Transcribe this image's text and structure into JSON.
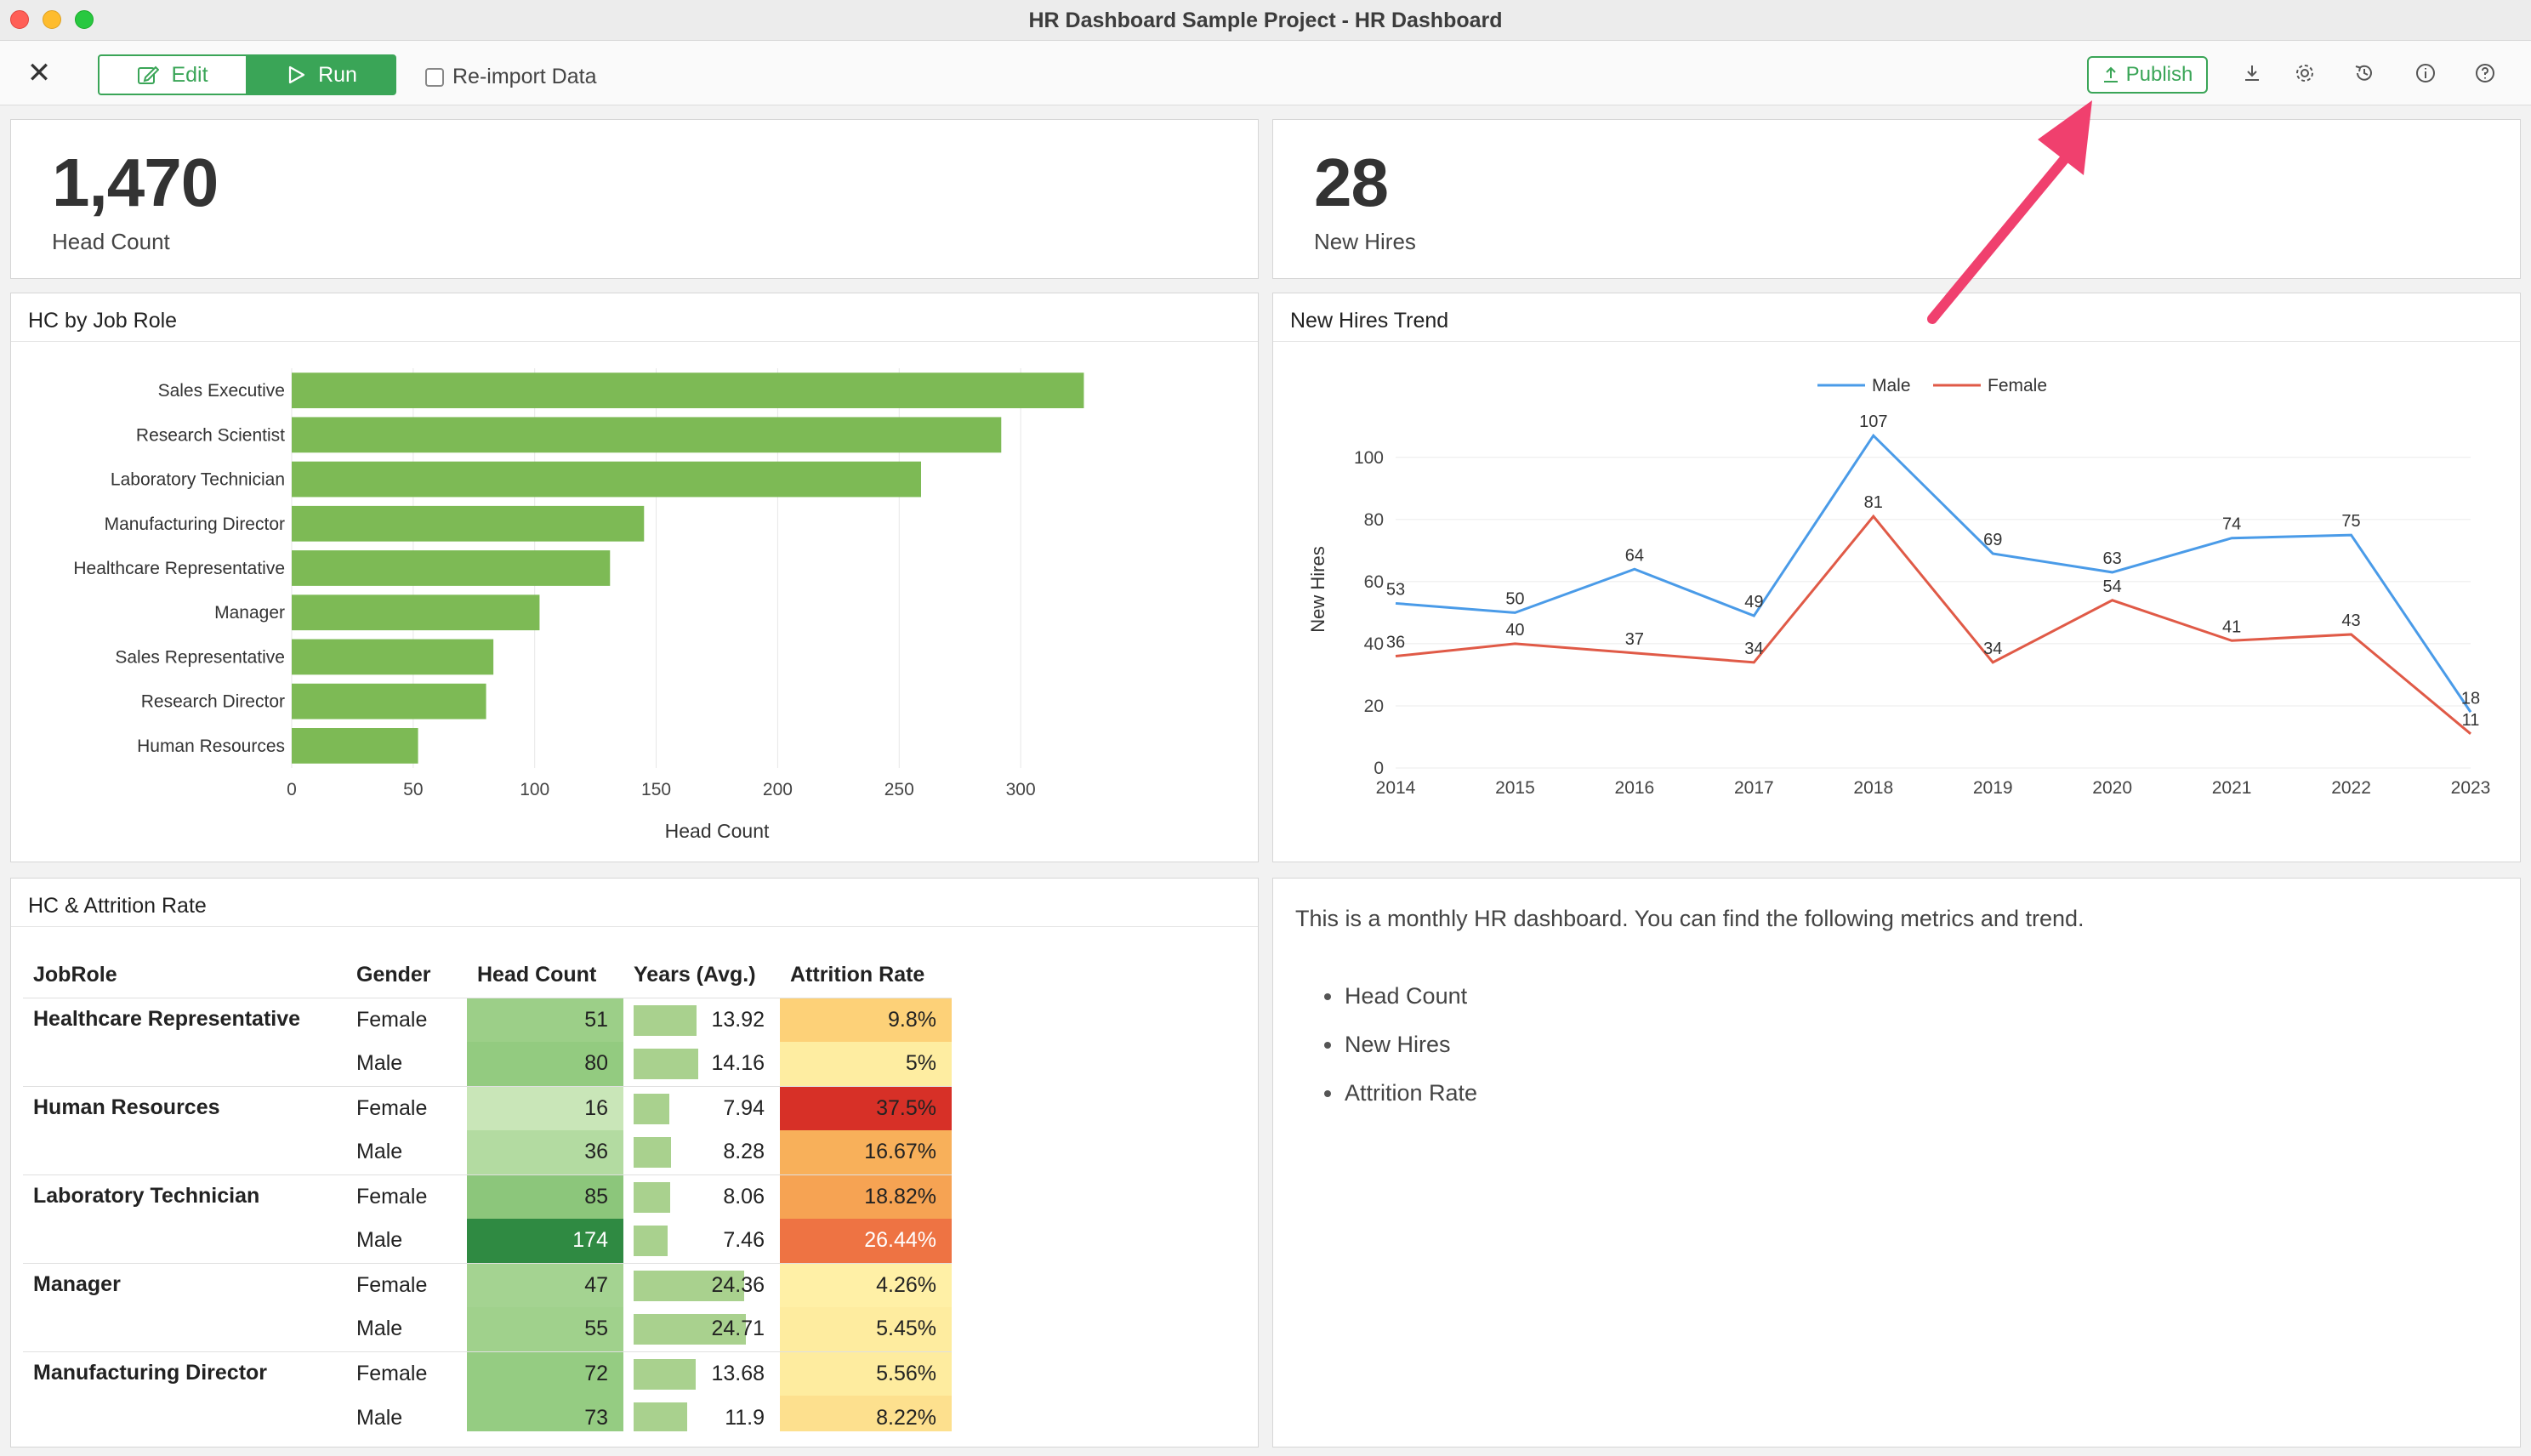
{
  "window": {
    "title": "HR Dashboard Sample Project - HR Dashboard"
  },
  "toolbar": {
    "edit_label": "Edit",
    "run_label": "Run",
    "reimport_label": "Re-import Data",
    "publish_label": "Publish",
    "icons": [
      "download-icon",
      "gear-icon",
      "history-icon",
      "info-icon",
      "help-icon"
    ]
  },
  "kpi": {
    "headcount_value": "1,470",
    "headcount_label": "Head Count",
    "newhires_value": "28",
    "newhires_label": "New Hires"
  },
  "colors": {
    "accent": "#3aa557",
    "bar": "#7dba55",
    "male_line": "#4a9be8",
    "female_line": "#e05a47",
    "annotation_arrow": "#f0406e"
  },
  "hc_by_role": {
    "title": "HC by Job Role",
    "chart_data": {
      "type": "bar",
      "orientation": "horizontal",
      "categories": [
        "Sales Executive",
        "Research Scientist",
        "Laboratory Technician",
        "Manufacturing Director",
        "Healthcare Representative",
        "Manager",
        "Sales Representative",
        "Research Director",
        "Human Resources"
      ],
      "values": [
        326,
        292,
        259,
        145,
        131,
        102,
        83,
        80,
        52
      ],
      "xlabel": "Head Count",
      "xlim": [
        0,
        350
      ],
      "xticks": [
        0,
        50,
        100,
        150,
        200,
        250,
        300
      ],
      "grid": true
    }
  },
  "new_hires_trend": {
    "title": "New Hires Trend",
    "chart_data": {
      "type": "line",
      "x": [
        "2014",
        "2015",
        "2016",
        "2017",
        "2018",
        "2019",
        "2020",
        "2021",
        "2022",
        "2023"
      ],
      "series": [
        {
          "name": "Male",
          "values": [
            53,
            50,
            64,
            49,
            107,
            69,
            63,
            74,
            75,
            18
          ]
        },
        {
          "name": "Female",
          "values": [
            36,
            40,
            37,
            34,
            81,
            34,
            54,
            41,
            43,
            11
          ]
        }
      ],
      "ylabel": "New Hires",
      "ylim": [
        0,
        115
      ],
      "yticks": [
        0,
        20,
        40,
        60,
        80,
        100
      ],
      "legend": "top-center",
      "grid": true
    }
  },
  "attrition": {
    "title": "HC & Attrition Rate",
    "columns": [
      "JobRole",
      "Gender",
      "Head Count",
      "Years (Avg.)",
      "Attrition Rate"
    ],
    "rows": [
      {
        "role": "Healthcare Representative",
        "gender": "Female",
        "hc": "51",
        "years": "13.92",
        "years_value": 13.92,
        "attrition": "9.8%",
        "hc_color": "#9ccf88",
        "att_color": "#fdd178"
      },
      {
        "role": "",
        "gender": "Male",
        "hc": "80",
        "years": "14.16",
        "years_value": 14.16,
        "attrition": "5%",
        "hc_color": "#93cb80",
        "att_color": "#feeda1"
      },
      {
        "role": "Human Resources",
        "gender": "Female",
        "hc": "16",
        "years": "7.94",
        "years_value": 7.94,
        "attrition": "37.5%",
        "hc_color": "#c9e6b8",
        "att_color": "#d73027"
      },
      {
        "role": "",
        "gender": "Male",
        "hc": "36",
        "years": "8.28",
        "years_value": 8.28,
        "attrition": "16.67%",
        "hc_color": "#b3dba1",
        "att_color": "#f8b05a"
      },
      {
        "role": "Laboratory Technician",
        "gender": "Female",
        "hc": "85",
        "years": "8.06",
        "years_value": 8.06,
        "attrition": "18.82%",
        "hc_color": "#8cc67b",
        "att_color": "#f6a353"
      },
      {
        "role": "",
        "gender": "Male",
        "hc": "174",
        "years": "7.46",
        "years_value": 7.46,
        "attrition": "26.44%",
        "hc_color": "#2f8a42",
        "att_color": "#ee7343",
        "hc_text_color": "#ffffff",
        "att_text_color": "#ffffff"
      },
      {
        "role": "Manager",
        "gender": "Female",
        "hc": "47",
        "years": "24.36",
        "years_value": 24.36,
        "attrition": "4.26%",
        "hc_color": "#a4d391",
        "att_color": "#fff0a6"
      },
      {
        "role": "",
        "gender": "Male",
        "hc": "55",
        "years": "24.71",
        "years_value": 24.71,
        "attrition": "5.45%",
        "hc_color": "#a0d18c",
        "att_color": "#feec9f"
      },
      {
        "role": "Manufacturing Director",
        "gender": "Female",
        "hc": "72",
        "years": "13.68",
        "years_value": 13.68,
        "attrition": "5.56%",
        "hc_color": "#95cc82",
        "att_color": "#feec9f"
      },
      {
        "role": "",
        "gender": "Male",
        "hc": "73",
        "years": "11.9",
        "years_value": 11.9,
        "attrition": "8.22%",
        "hc_color": "#95cc82",
        "att_color": "#fde08e"
      }
    ]
  },
  "description": {
    "text": "This is a monthly HR dashboard. You can find the following metrics and trend.",
    "bullets": [
      "Head Count",
      "New Hires",
      "Attrition Rate"
    ]
  }
}
